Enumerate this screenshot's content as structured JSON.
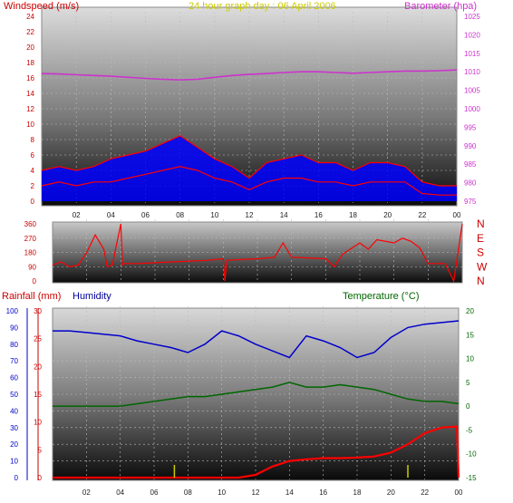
{
  "header": {
    "title": "24 hour graph day : 06 April 2006",
    "wind_label": "Windspeed (m/s)",
    "baro_label": "Barometer (hpa)",
    "rain_label": "Rainfall (mm)",
    "humidity_label": "Humidity",
    "temp_label": "Temperature (°C)"
  },
  "colors": {
    "windspeed": "#ff0000",
    "gust_fill": "#0000ff",
    "barometer": "#cc33cc",
    "title": "#cccc00",
    "direction": "#ff0000",
    "rainfall": "#ff0000",
    "humidity": "#0000cc",
    "temperature": "#006600",
    "rain_bar": "#cccc00"
  },
  "x_ticks": [
    "02",
    "04",
    "06",
    "08",
    "10",
    "12",
    "14",
    "16",
    "18",
    "20",
    "22",
    "00"
  ],
  "chart_data": [
    {
      "type": "line",
      "panel": "wind_baro",
      "x_label": "hour",
      "wind_axis": {
        "label": "Windspeed (m/s)",
        "ticks": [
          "0",
          "2",
          "4",
          "6",
          "8",
          "10",
          "12",
          "14",
          "16",
          "18",
          "20",
          "22",
          "24"
        ],
        "range": [
          0,
          24
        ]
      },
      "baro_axis": {
        "label": "Barometer (hpa)",
        "ticks": [
          "975",
          "980",
          "985",
          "990",
          "995",
          "1000",
          "1005",
          "1010",
          "1015",
          "1020",
          "1025"
        ],
        "range": [
          975,
          1025
        ]
      },
      "series": [
        {
          "name": "Barometer (hpa)",
          "axis": "right",
          "x": [
            0,
            1,
            2,
            3,
            4,
            5,
            6,
            7,
            8,
            9,
            10,
            11,
            12,
            13,
            14,
            15,
            16,
            17,
            18,
            19,
            20,
            21,
            22,
            23,
            24
          ],
          "values": [
            1009.5,
            1009.4,
            1009.2,
            1009.0,
            1008.8,
            1008.5,
            1008.2,
            1008.0,
            1007.8,
            1008.0,
            1008.5,
            1009.0,
            1009.3,
            1009.5,
            1009.8,
            1010.0,
            1010.0,
            1009.8,
            1009.6,
            1009.8,
            1010.0,
            1010.2,
            1010.2,
            1010.3,
            1010.5
          ]
        },
        {
          "name": "Windspeed (m/s)",
          "axis": "left",
          "x": [
            0,
            1,
            2,
            3,
            4,
            5,
            6,
            7,
            8,
            9,
            10,
            11,
            12,
            13,
            14,
            15,
            16,
            17,
            18,
            19,
            20,
            21,
            22,
            23,
            24
          ],
          "values": [
            2.0,
            2.5,
            2.0,
            2.5,
            2.5,
            3.0,
            3.5,
            4.0,
            4.5,
            4.0,
            3.0,
            2.5,
            1.5,
            2.5,
            3.0,
            3.0,
            2.5,
            2.5,
            2.0,
            2.5,
            2.5,
            2.5,
            1.0,
            0.8,
            0.8
          ]
        },
        {
          "name": "Gust (m/s)",
          "axis": "left",
          "x": [
            0,
            1,
            2,
            3,
            4,
            5,
            6,
            7,
            8,
            9,
            10,
            11,
            12,
            13,
            14,
            15,
            16,
            17,
            18,
            19,
            20,
            21,
            22,
            23,
            24
          ],
          "values": [
            4.0,
            4.5,
            4.0,
            4.5,
            5.5,
            6.0,
            6.5,
            7.5,
            8.5,
            7.0,
            5.5,
            4.5,
            3.0,
            5.0,
            5.5,
            6.0,
            5.0,
            5.0,
            4.0,
            5.0,
            5.0,
            4.5,
            2.5,
            2.0,
            2.0
          ]
        }
      ]
    },
    {
      "type": "line",
      "panel": "wind_direction",
      "direction_labels": [
        "N",
        "W",
        "S",
        "E",
        "N"
      ],
      "degree_ticks": [
        "0",
        "90",
        "180",
        "270",
        "360"
      ],
      "range": [
        0,
        360
      ],
      "series": [
        {
          "name": "Wind direction",
          "x": [
            0,
            0.5,
            1,
            1.5,
            2,
            2.5,
            3,
            3.2,
            3.5,
            4,
            4.1,
            4.2,
            5,
            6,
            7,
            8,
            9,
            10,
            10.1,
            10.2,
            11,
            12,
            13,
            13.5,
            14,
            15,
            16,
            16.5,
            17,
            18,
            18.5,
            19,
            20,
            20.5,
            21,
            21.5,
            22,
            23,
            23.5,
            24
          ],
          "values": [
            100,
            120,
            90,
            100,
            180,
            290,
            200,
            90,
            100,
            360,
            100,
            110,
            110,
            115,
            120,
            125,
            130,
            140,
            0,
            130,
            135,
            140,
            150,
            240,
            150,
            145,
            140,
            90,
            170,
            240,
            200,
            260,
            240,
            270,
            250,
            210,
            110,
            110,
            0,
            360
          ]
        }
      ]
    },
    {
      "type": "line",
      "panel": "rain_humidity_temp",
      "humidity_axis": {
        "label": "Humidity",
        "ticks": [
          "0",
          "10",
          "20",
          "30",
          "40",
          "50",
          "60",
          "70",
          "80",
          "90",
          "100"
        ],
        "range": [
          0,
          100
        ]
      },
      "rain_axis": {
        "label": "Rainfall (mm)",
        "ticks": [
          "0",
          "5",
          "10",
          "15",
          "20",
          "25",
          "30"
        ],
        "range": [
          0,
          30
        ]
      },
      "temp_axis": {
        "label": "Temperature (°C)",
        "ticks": [
          "-15",
          "-10",
          "-5",
          "0",
          "5",
          "10",
          "15",
          "20"
        ],
        "range": [
          -15,
          20
        ]
      },
      "series": [
        {
          "name": "Humidity",
          "axis": "left",
          "x": [
            0,
            1,
            2,
            3,
            4,
            5,
            6,
            7,
            8,
            9,
            10,
            11,
            12,
            13,
            14,
            15,
            16,
            17,
            18,
            19,
            20,
            21,
            22,
            23,
            24
          ],
          "values": [
            88,
            88,
            87,
            86,
            85,
            82,
            80,
            78,
            75,
            80,
            88,
            85,
            80,
            76,
            72,
            85,
            82,
            78,
            72,
            75,
            84,
            90,
            92,
            93,
            94
          ]
        },
        {
          "name": "Temperature (°C)",
          "axis": "right",
          "x": [
            0,
            1,
            2,
            3,
            4,
            5,
            6,
            7,
            8,
            9,
            10,
            11,
            12,
            13,
            14,
            15,
            16,
            17,
            18,
            19,
            20,
            21,
            22,
            23,
            24
          ],
          "values": [
            0,
            0,
            0,
            0,
            0,
            0.5,
            1,
            1.5,
            2,
            2,
            2.5,
            3,
            3.5,
            4,
            5,
            4,
            4,
            4.5,
            4,
            3.5,
            2.5,
            1.5,
            1,
            1,
            0.5
          ]
        },
        {
          "name": "Rainfall (mm)",
          "axis": "left-inner",
          "x": [
            0,
            1,
            2,
            3,
            4,
            5,
            6,
            7,
            8,
            9,
            10,
            11,
            12,
            13,
            14,
            15,
            16,
            17,
            18,
            19,
            20,
            21,
            22,
            23,
            23.9,
            24
          ],
          "values": [
            0,
            0,
            0,
            0,
            0,
            0,
            0,
            0,
            0,
            0,
            0,
            0,
            0.5,
            2,
            3,
            3.3,
            3.5,
            3.5,
            3.6,
            3.8,
            4.5,
            6,
            8,
            9,
            9.2,
            0
          ]
        }
      ]
    }
  ]
}
